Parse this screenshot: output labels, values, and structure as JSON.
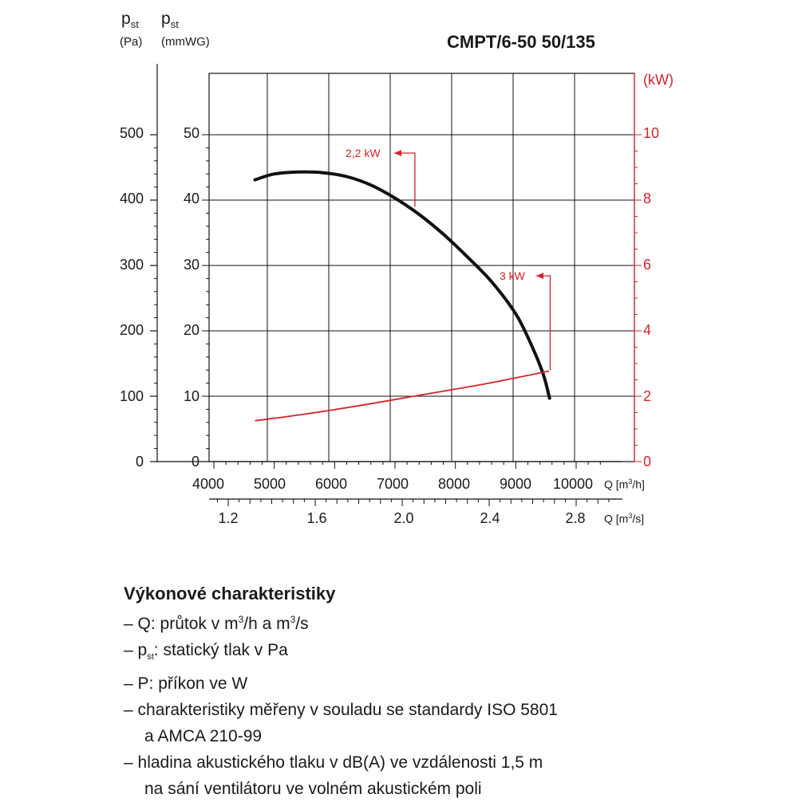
{
  "header": {
    "pst_symbol": "p",
    "pst_sub": "st",
    "pa_unit": "(Pa)",
    "mmwg_unit": "(mmWG)",
    "title": "CMPT/6-50 50/135"
  },
  "chart_data": {
    "type": "line",
    "title": "CMPT/6-50 50/135",
    "axes": {
      "y_pa": {
        "label": "(Pa)",
        "ticks": [
          "0",
          "100",
          "200",
          "300",
          "400",
          "500"
        ],
        "range": [
          0,
          500
        ]
      },
      "y_mmwg": {
        "label": "(mmWG)",
        "ticks": [
          "0",
          "10",
          "20",
          "30",
          "40",
          "50"
        ],
        "range": [
          0,
          50
        ]
      },
      "y_kw": {
        "label": "(kW)",
        "ticks": [
          "0",
          "2",
          "4",
          "6",
          "8",
          "10"
        ],
        "range": [
          0,
          10
        ]
      },
      "x_m3h": {
        "label": "Q [m³/h]",
        "ticks": [
          "4000",
          "5000",
          "6000",
          "7000",
          "8000",
          "9000",
          "10000"
        ],
        "range": [
          4000,
          10000
        ]
      },
      "x_m3s": {
        "label": "Q [m³/s]",
        "ticks": [
          "1.2",
          "1.6",
          "2.0",
          "2.4",
          "2.8"
        ]
      }
    },
    "grid": true,
    "series": [
      {
        "color": "#111111",
        "points": [
          [
            4680,
            431
          ],
          [
            5000,
            440
          ],
          [
            5400,
            443
          ],
          [
            5800,
            442
          ],
          [
            6200,
            436
          ],
          [
            6600,
            423
          ],
          [
            7000,
            403
          ],
          [
            7400,
            378
          ],
          [
            7800,
            348
          ],
          [
            8200,
            313
          ],
          [
            8600,
            275
          ],
          [
            9000,
            226
          ],
          [
            9250,
            180
          ],
          [
            9450,
            135
          ],
          [
            9560,
            97
          ]
        ]
      },
      {
        "color": "#d8232a",
        "points": [
          [
            4680,
            1.25
          ],
          [
            5500,
            1.45
          ],
          [
            6500,
            1.74
          ],
          [
            7500,
            2.06
          ],
          [
            8500,
            2.38
          ],
          [
            9550,
            2.77
          ]
        ]
      }
    ],
    "annotations": [
      {
        "text": "2,2 kW",
        "arrow_from": [
          7330,
          390
        ]
      },
      {
        "text": "3 kW",
        "arrow_from": [
          9570,
          140
        ]
      }
    ]
  },
  "legend": {
    "heading": "Výkonové charakteristiky",
    "dash": "–",
    "line1_a": "Q: průtok v m",
    "sup3": "3",
    "line1_b": "/h a m",
    "line1_c": "/s",
    "line2_p": "p",
    "line2_sub": "st",
    "line2_rest": ": statický tlak v Pa",
    "line3": "P: příkon ve W",
    "line4a": "charakteristiky měřeny v souladu se standardy ISO 5801",
    "line4b": "a AMCA 210-99",
    "line5a": "hladina akustického tlaku v dB(A) ve vzdálenosti 1,5 m",
    "line5b": "na sání ventilátoru ve volném akustickém poli"
  }
}
